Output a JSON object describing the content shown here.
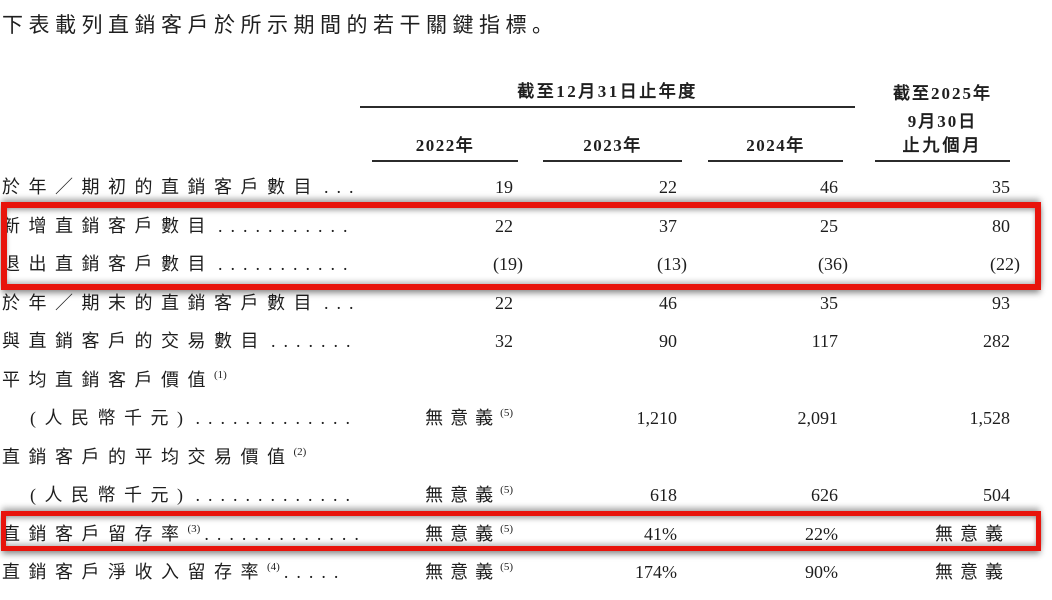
{
  "title": "下表載列直銷客戶於所示期間的若干關鍵指標。",
  "table": {
    "group_header": "截至12月31日止年度",
    "period_header_lines": [
      "截至2025年",
      "9月30日",
      "止九個月"
    ],
    "year_headers": [
      "2022年",
      "2023年",
      "2024年"
    ],
    "rows": [
      {
        "label": "於年／期初的直銷客戶數目",
        "label_sup": "",
        "leader": "...",
        "values": [
          {
            "text": "19",
            "sup": ""
          },
          {
            "text": "22",
            "sup": ""
          },
          {
            "text": "46",
            "sup": ""
          },
          {
            "text": "35",
            "sup": ""
          }
        ]
      },
      {
        "label": "新增直銷客戶數目",
        "label_sup": "",
        "leader": "...........",
        "values": [
          {
            "text": "22",
            "sup": ""
          },
          {
            "text": "37",
            "sup": ""
          },
          {
            "text": "25",
            "sup": ""
          },
          {
            "text": "80",
            "sup": ""
          }
        ]
      },
      {
        "label": "退出直銷客戶數目",
        "label_sup": "",
        "leader": "...........",
        "values": [
          {
            "text": "(19)",
            "sup": ""
          },
          {
            "text": "(13)",
            "sup": ""
          },
          {
            "text": "(36)",
            "sup": ""
          },
          {
            "text": "(22)",
            "sup": ""
          }
        ]
      },
      {
        "label": "於年／期末的直銷客戶數目",
        "label_sup": "",
        "leader": "...",
        "values": [
          {
            "text": "22",
            "sup": ""
          },
          {
            "text": "46",
            "sup": ""
          },
          {
            "text": "35",
            "sup": ""
          },
          {
            "text": "93",
            "sup": ""
          }
        ]
      },
      {
        "label": "與直銷客戶的交易數目",
        "label_sup": "",
        "leader": ".......",
        "values": [
          {
            "text": "32",
            "sup": ""
          },
          {
            "text": "90",
            "sup": ""
          },
          {
            "text": "117",
            "sup": ""
          },
          {
            "text": "282",
            "sup": ""
          }
        ]
      },
      {
        "label": "平均直銷客戶價值",
        "label_sup": "(1)",
        "leader": "",
        "values": [
          {
            "text": "",
            "sup": ""
          },
          {
            "text": "",
            "sup": ""
          },
          {
            "text": "",
            "sup": ""
          },
          {
            "text": "",
            "sup": ""
          }
        ]
      },
      {
        "label": "(人民幣千元)",
        "label_sup": "",
        "leader": ".............",
        "values": [
          {
            "text": "無意義",
            "sup": "(5)"
          },
          {
            "text": "1,210",
            "sup": ""
          },
          {
            "text": "2,091",
            "sup": ""
          },
          {
            "text": "1,528",
            "sup": ""
          }
        ]
      },
      {
        "label": "直銷客戶的平均交易價值",
        "label_sup": "(2)",
        "leader": "",
        "values": [
          {
            "text": "",
            "sup": ""
          },
          {
            "text": "",
            "sup": ""
          },
          {
            "text": "",
            "sup": ""
          },
          {
            "text": "",
            "sup": ""
          }
        ]
      },
      {
        "label": "(人民幣千元)",
        "label_sup": "",
        "leader": ".............",
        "values": [
          {
            "text": "無意義",
            "sup": "(5)"
          },
          {
            "text": "618",
            "sup": ""
          },
          {
            "text": "626",
            "sup": ""
          },
          {
            "text": "504",
            "sup": ""
          }
        ]
      },
      {
        "label": "直銷客戶留存率",
        "label_sup": "(3)",
        "leader": ".............",
        "values": [
          {
            "text": "無意義",
            "sup": "(5)"
          },
          {
            "text": "41%",
            "sup": ""
          },
          {
            "text": "22%",
            "sup": ""
          },
          {
            "text": "無意義",
            "sup": ""
          }
        ]
      },
      {
        "label": "直銷客戶淨收入留存率",
        "label_sup": "(4)",
        "leader": ".....",
        "values": [
          {
            "text": "無意義",
            "sup": "(5)"
          },
          {
            "text": "174%",
            "sup": ""
          },
          {
            "text": "90%",
            "sup": ""
          },
          {
            "text": "無意義",
            "sup": ""
          }
        ]
      }
    ]
  },
  "highlights": {
    "color": "#e8140c"
  }
}
